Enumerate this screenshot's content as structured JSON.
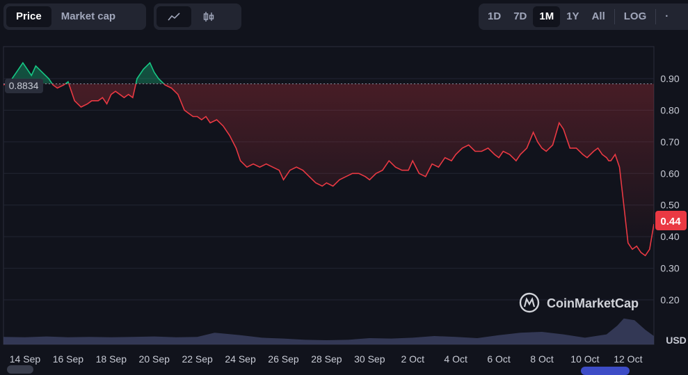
{
  "tabs": {
    "price": "Price",
    "market_cap": "Market cap"
  },
  "chart_icons": [
    "line-chart-icon",
    "candlestick-icon"
  ],
  "ranges": [
    "1D",
    "7D",
    "1M",
    "1Y",
    "All"
  ],
  "active_range": "1M",
  "log_label": "LOG",
  "more_label": "·",
  "reference_price": "0.8834",
  "current_price": "0.44",
  "currency": "USD",
  "watermark": "CoinMarketCap",
  "colors": {
    "up": "#16c784",
    "down": "#ea3943",
    "price_badge": "#ea3943",
    "volume": "#3a3f5f"
  },
  "chart_data": {
    "type": "line",
    "ylim": [
      0.1,
      1.0
    ],
    "yticks": [
      0.2,
      0.3,
      0.4,
      0.5,
      0.6,
      0.7,
      0.8,
      0.9
    ],
    "ytick_labels": [
      "0.20",
      "0.30",
      "0.40",
      "0.50",
      "0.60",
      "0.70",
      "0.80",
      "0.90"
    ],
    "xticks": [
      "14 Sep",
      "16 Sep",
      "18 Sep",
      "20 Sep",
      "22 Sep",
      "24 Sep",
      "26 Sep",
      "28 Sep",
      "30 Sep",
      "2 Oct",
      "4 Oct",
      "6 Oct",
      "8 Oct",
      "10 Oct",
      "12 Oct"
    ],
    "x_range_days": [
      13.0,
      43.2
    ],
    "baseline": 0.8834,
    "series": [
      {
        "x": [
          13.0,
          13.3,
          13.6,
          13.9,
          14.1,
          14.3,
          14.5,
          14.8,
          15.1,
          15.3,
          15.5,
          15.8,
          16.0,
          16.3,
          16.6,
          16.9,
          17.1,
          17.4,
          17.6,
          17.8,
          18.0,
          18.2,
          18.4,
          18.6,
          18.8,
          19.0,
          19.2,
          19.5,
          19.8,
          20.0,
          20.2,
          20.5,
          20.8,
          21.1,
          21.4,
          21.6,
          21.8,
          22.0,
          22.2,
          22.4,
          22.6,
          22.9,
          23.2,
          23.5,
          23.8,
          24.0,
          24.3,
          24.6,
          24.9,
          25.2,
          25.5,
          25.8,
          26.0,
          26.3,
          26.6,
          26.9,
          27.2,
          27.5,
          27.8,
          28.0,
          28.3,
          28.6,
          28.9,
          29.2,
          29.5,
          29.8,
          30.0,
          30.3,
          30.6,
          30.9,
          31.2,
          31.5,
          31.8,
          32.0,
          32.3,
          32.6,
          32.9,
          33.2,
          33.5,
          33.8,
          34.0,
          34.3,
          34.6,
          34.9,
          35.2,
          35.5,
          35.8,
          36.0,
          36.2,
          36.5,
          36.8,
          37.0,
          37.3,
          37.6,
          37.8,
          38.0,
          38.2,
          38.5,
          38.8,
          39.0,
          39.3,
          39.6,
          39.9,
          40.1,
          40.4,
          40.6,
          40.8,
          41.0,
          41.1,
          41.2,
          41.4,
          41.6,
          41.8,
          42.0,
          42.2,
          42.4,
          42.6,
          42.8,
          43.0,
          43.2
        ],
        "y": [
          0.88,
          0.89,
          0.92,
          0.95,
          0.93,
          0.91,
          0.94,
          0.92,
          0.9,
          0.88,
          0.87,
          0.88,
          0.89,
          0.83,
          0.81,
          0.82,
          0.83,
          0.83,
          0.84,
          0.82,
          0.85,
          0.86,
          0.85,
          0.84,
          0.85,
          0.84,
          0.9,
          0.93,
          0.95,
          0.92,
          0.9,
          0.88,
          0.87,
          0.85,
          0.8,
          0.79,
          0.78,
          0.78,
          0.77,
          0.78,
          0.76,
          0.77,
          0.75,
          0.72,
          0.68,
          0.64,
          0.62,
          0.63,
          0.62,
          0.63,
          0.62,
          0.61,
          0.58,
          0.61,
          0.62,
          0.61,
          0.59,
          0.57,
          0.56,
          0.57,
          0.56,
          0.58,
          0.59,
          0.6,
          0.6,
          0.59,
          0.58,
          0.6,
          0.61,
          0.64,
          0.62,
          0.61,
          0.61,
          0.64,
          0.6,
          0.59,
          0.63,
          0.62,
          0.65,
          0.64,
          0.66,
          0.68,
          0.69,
          0.67,
          0.67,
          0.68,
          0.66,
          0.65,
          0.67,
          0.66,
          0.64,
          0.66,
          0.68,
          0.73,
          0.7,
          0.68,
          0.67,
          0.69,
          0.76,
          0.74,
          0.68,
          0.68,
          0.66,
          0.65,
          0.67,
          0.68,
          0.66,
          0.65,
          0.64,
          0.64,
          0.66,
          0.62,
          0.5,
          0.38,
          0.36,
          0.37,
          0.35,
          0.34,
          0.36,
          0.44
        ]
      }
    ],
    "volume": {
      "x": [
        13.0,
        14.0,
        15.0,
        16.0,
        17.0,
        18.0,
        19.0,
        20.0,
        21.0,
        22.0,
        22.8,
        23.2,
        24.0,
        25.0,
        26.0,
        27.0,
        28.0,
        29.0,
        30.0,
        31.0,
        32.0,
        33.0,
        34.0,
        35.0,
        36.0,
        37.0,
        38.0,
        39.0,
        40.0,
        41.0,
        41.5,
        41.8,
        42.3,
        42.8,
        43.2
      ],
      "y": [
        0.18,
        0.17,
        0.19,
        0.17,
        0.18,
        0.17,
        0.18,
        0.19,
        0.17,
        0.18,
        0.28,
        0.26,
        0.22,
        0.16,
        0.14,
        0.11,
        0.1,
        0.11,
        0.15,
        0.14,
        0.16,
        0.2,
        0.18,
        0.15,
        0.22,
        0.28,
        0.3,
        0.24,
        0.16,
        0.24,
        0.45,
        0.62,
        0.58,
        0.35,
        0.2
      ]
    }
  }
}
